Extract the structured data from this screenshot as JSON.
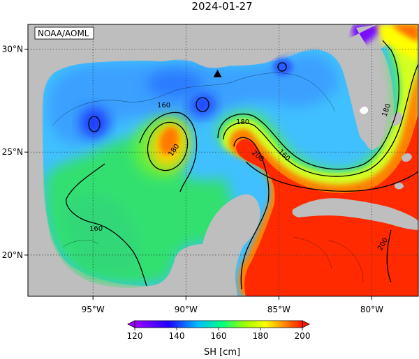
{
  "title": "2024-01-27",
  "credit": "NOAA/AOML",
  "map": {
    "lon_range": [
      -98.5,
      -77.5
    ],
    "lat_range": [
      18.0,
      31.2
    ],
    "x_ticks": [
      {
        "lon": -95,
        "label": "95°W"
      },
      {
        "lon": -90,
        "label": "90°W"
      },
      {
        "lon": -85,
        "label": "85°W"
      },
      {
        "lon": -80,
        "label": "80°W"
      }
    ],
    "y_ticks": [
      {
        "lat": 30,
        "label": "30°N"
      },
      {
        "lat": 25,
        "label": "25°N"
      },
      {
        "lat": 20,
        "label": "20°N"
      }
    ],
    "gridlines": "dotted",
    "marker": {
      "symbol": "triangle",
      "lon": -88.3,
      "lat": 28.8
    },
    "contour_labels": [
      "160",
      "180",
      "180",
      "160",
      "200",
      "160",
      "180",
      "200"
    ]
  },
  "colorbar": {
    "min": 120,
    "max": 200,
    "ticks": [
      "120",
      "140",
      "160",
      "180",
      "200"
    ],
    "label": "SH [cm]",
    "colors": [
      "#9b00ff",
      "#0000ff",
      "#00bfff",
      "#00ff80",
      "#ffff00",
      "#ff8000",
      "#ff0000"
    ]
  },
  "colors": {
    "land": "#bebebe",
    "cold_eddy": "#1a4bff",
    "gulf_mid": "#40c8ff",
    "shelf": "#40e070",
    "loop_current": "#ff2a00"
  }
}
